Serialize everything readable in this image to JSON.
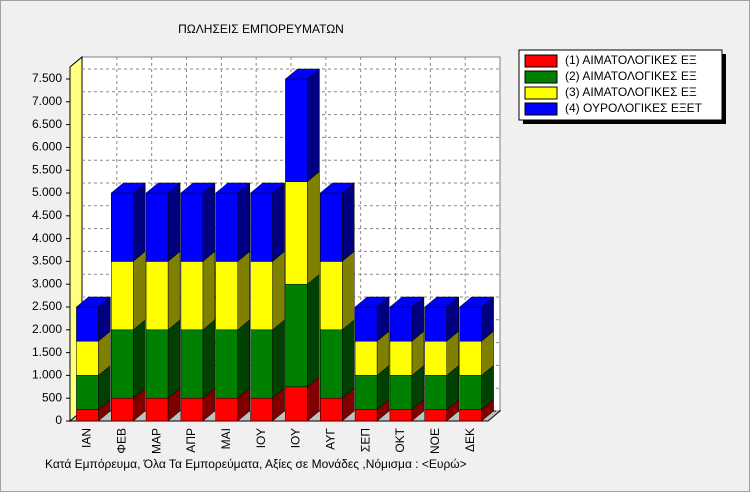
{
  "chart_data": {
    "type": "bar3d_stacked",
    "title": "ΠΩΛΗΣΕΙΣ ΕΜΠΟΡΕΥΜΑΤΩΝ",
    "subtitle": "Κατά Εμπόρευμα, Όλα Τα Εμπορεύματα,  Αξίες σε Μονάδες ,Νόμισμα : <Ευρώ>",
    "categories": [
      "ΙΑΝ",
      "ΦΕΒ",
      "ΜΑΡ",
      "ΑΠΡ",
      "ΜΑΙ",
      "ΙΟΥ",
      "ΙΟΥ",
      "ΑΥΓ",
      "ΣΕΠ",
      "ΟΚΤ",
      "ΝΟΕ",
      "ΔΕΚ"
    ],
    "series": [
      {
        "name": "(1) ΑΙΜΑΤΟΛΟΓΙΚΕΣ ΕΞ",
        "color": "#ff0000",
        "values": [
          250,
          500,
          500,
          500,
          500,
          500,
          750,
          500,
          250,
          250,
          250,
          250
        ]
      },
      {
        "name": "(2) ΑΙΜΑΤΟΛΟΓΙΚΕΣ ΕΞ",
        "color": "#008000",
        "values": [
          750,
          1500,
          1500,
          1500,
          1500,
          1500,
          2250,
          1500,
          750,
          750,
          750,
          750
        ]
      },
      {
        "name": "(3) ΑΙΜΑΤΟΛΟΓΙΚΕΣ ΕΞ",
        "color": "#ffff00",
        "values": [
          750,
          1500,
          1500,
          1500,
          1500,
          1500,
          2250,
          1500,
          750,
          750,
          750,
          750
        ]
      },
      {
        "name": "(4) ΟΥΡΟΛΟΓΙΚΕΣ ΕΞΕΤ",
        "color": "#0000ff",
        "values": [
          750,
          1500,
          1500,
          1500,
          1500,
          1500,
          2250,
          1500,
          750,
          750,
          750,
          750
        ]
      }
    ],
    "ylim": [
      0,
      7500
    ],
    "yticks": [
      0,
      500,
      {
        "value": 1000,
        "label": "1.000"
      },
      {
        "value": 1500,
        "label": "1.500"
      },
      {
        "value": 2000,
        "label": "2.000"
      },
      {
        "value": 2500,
        "label": "2.500"
      },
      {
        "value": 3000,
        "label": "3.000"
      },
      {
        "value": 3500,
        "label": "3.500"
      },
      {
        "value": 4000,
        "label": "4.000"
      },
      {
        "value": 4500,
        "label": "4.500"
      },
      {
        "value": 5000,
        "label": "5.000"
      },
      {
        "value": 5500,
        "label": "5.500"
      },
      {
        "value": 6000,
        "label": "6.000"
      },
      {
        "value": 6500,
        "label": "6.500"
      },
      {
        "value": 7000,
        "label": "7.000"
      },
      {
        "value": 7500,
        "label": "7.500"
      }
    ],
    "grid": true,
    "legend": "top-right"
  }
}
